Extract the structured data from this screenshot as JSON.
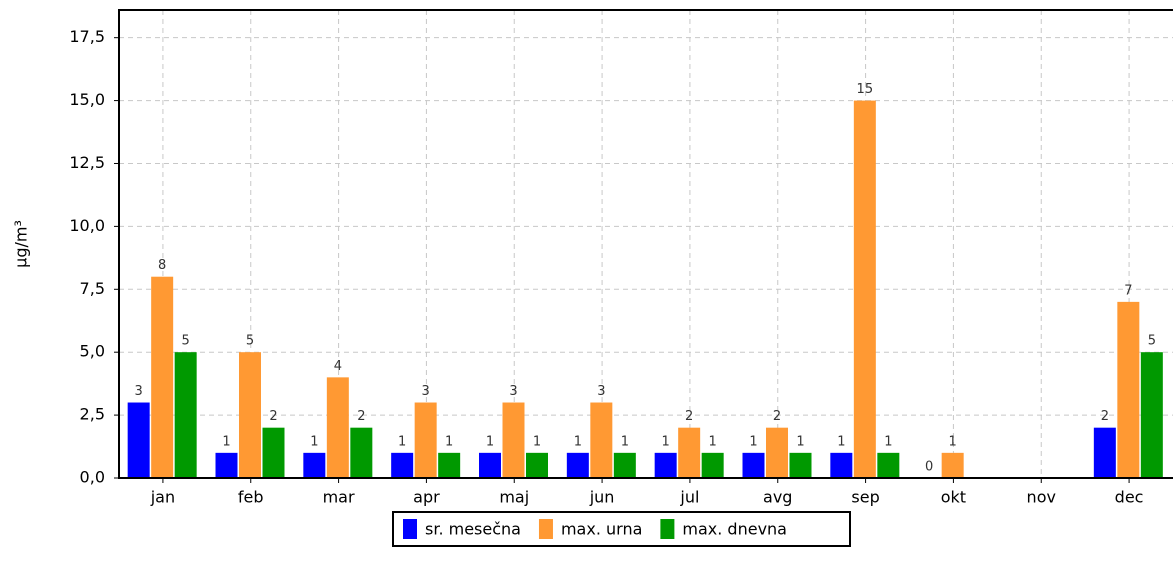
{
  "chart_data": {
    "type": "bar",
    "y_label": "µg/m³",
    "categories": [
      "jan",
      "feb",
      "mar",
      "apr",
      "maj",
      "jun",
      "jul",
      "avg",
      "sep",
      "okt",
      "nov",
      "dec"
    ],
    "series": [
      {
        "name": "sr. mesečna",
        "color": "#0000ff",
        "values": [
          3,
          1,
          1,
          1,
          1,
          1,
          1,
          1,
          1,
          0,
          null,
          2
        ]
      },
      {
        "name": "max. urna",
        "color": "#ff9933",
        "values": [
          8,
          5,
          4,
          3,
          3,
          3,
          2,
          2,
          15,
          1,
          null,
          7
        ]
      },
      {
        "name": "max. dnevna",
        "color": "#009900",
        "values": [
          5,
          2,
          2,
          1,
          1,
          1,
          1,
          1,
          1,
          null,
          null,
          5
        ]
      }
    ],
    "ylim": [
      0,
      18.6
    ],
    "yticks": [
      {
        "value": 0,
        "label": "0,0"
      },
      {
        "value": 2.5,
        "label": "2,5"
      },
      {
        "value": 5,
        "label": "5,0"
      },
      {
        "value": 7.5,
        "label": "7,5"
      },
      {
        "value": 10,
        "label": "10,0"
      },
      {
        "value": 12.5,
        "label": "12,5"
      },
      {
        "value": 15,
        "label": "15,0"
      },
      {
        "value": 17.5,
        "label": "17,5"
      }
    ],
    "grid": true
  }
}
